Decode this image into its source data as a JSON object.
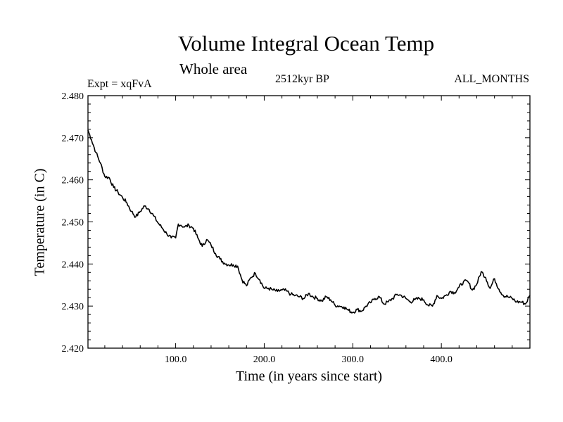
{
  "chart_data": {
    "type": "line",
    "title": "Volume Integral Ocean Temp",
    "subtitle": "Whole area",
    "experiment_label": "Expt = xqFvA",
    "period_label": "2512kyr BP",
    "months_label": "ALL_MONTHS",
    "xlabel": "Time (in years since start)",
    "ylabel": "Temperature (in C)",
    "xlim": [
      1,
      500
    ],
    "ylim": [
      2.42,
      2.48
    ],
    "x_ticks": [
      100,
      200,
      300,
      400
    ],
    "x_tick_labels": [
      "100.0",
      "200.0",
      "300.0",
      "400.0"
    ],
    "y_ticks": [
      2.42,
      2.43,
      2.44,
      2.45,
      2.46,
      2.47,
      2.48
    ],
    "y_tick_labels": [
      "2.420",
      "2.430",
      "2.440",
      "2.450",
      "2.460",
      "2.470",
      "2.480"
    ],
    "grid": false,
    "series": [
      {
        "name": "Volume integral ocean temperature",
        "color": "#000000",
        "x": [
          1,
          5,
          10,
          15,
          20,
          25,
          30,
          35,
          40,
          45,
          50,
          55,
          60,
          65,
          70,
          75,
          80,
          85,
          90,
          95,
          100,
          103,
          106,
          110,
          115,
          120,
          125,
          130,
          135,
          140,
          145,
          150,
          155,
          160,
          165,
          170,
          175,
          180,
          185,
          190,
          195,
          200,
          205,
          210,
          215,
          220,
          225,
          230,
          235,
          240,
          245,
          250,
          255,
          260,
          265,
          270,
          275,
          280,
          285,
          290,
          295,
          300,
          305,
          310,
          315,
          320,
          325,
          330,
          335,
          340,
          345,
          350,
          355,
          360,
          365,
          370,
          375,
          380,
          385,
          390,
          395,
          400,
          405,
          410,
          415,
          420,
          425,
          430,
          435,
          440,
          445,
          450,
          455,
          460,
          465,
          470,
          475,
          480,
          485,
          490,
          495,
          500
        ],
        "values": [
          2.4718,
          2.4695,
          2.4665,
          2.464,
          2.4608,
          2.4605,
          2.4582,
          2.457,
          2.4558,
          2.4545,
          2.4525,
          2.4512,
          2.4525,
          2.4538,
          2.453,
          2.4515,
          2.4498,
          2.4485,
          2.4472,
          2.4462,
          2.4462,
          2.4495,
          2.4492,
          2.4488,
          2.4492,
          2.4485,
          2.4462,
          2.4442,
          2.4458,
          2.4445,
          2.4425,
          2.4412,
          2.4402,
          2.4398,
          2.4398,
          2.4395,
          2.4362,
          2.4348,
          2.4368,
          2.4378,
          2.4362,
          2.4342,
          2.4342,
          2.4338,
          2.4335,
          2.4338,
          2.4336,
          2.4328,
          2.4325,
          2.4322,
          2.4318,
          2.433,
          2.4322,
          2.4318,
          2.4312,
          2.4322,
          2.4315,
          2.4302,
          2.43,
          2.4298,
          2.429,
          2.4285,
          2.4292,
          2.4288,
          2.43,
          2.4308,
          2.4318,
          2.4322,
          2.4305,
          2.431,
          2.4318,
          2.4328,
          2.4325,
          2.4318,
          2.431,
          2.4315,
          2.4318,
          2.4315,
          2.4302,
          2.43,
          2.4325,
          2.4318,
          2.4325,
          2.4335,
          2.4332,
          2.4345,
          2.4358,
          2.4358,
          2.4338,
          2.4352,
          2.4382,
          2.4368,
          2.4342,
          2.4365,
          2.434,
          2.4325,
          2.4322,
          2.4318,
          2.431,
          2.431,
          2.4305,
          2.4325
        ]
      }
    ]
  }
}
